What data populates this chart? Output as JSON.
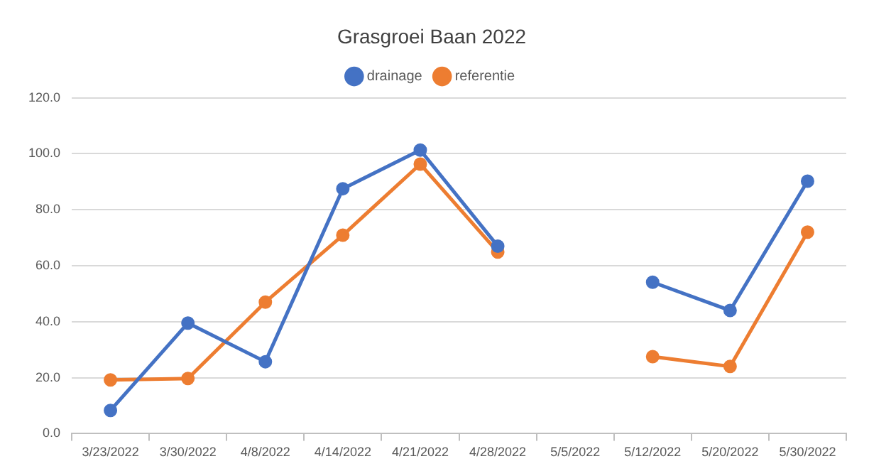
{
  "chart_data": {
    "type": "line",
    "title": "Grasgroei Baan 2022",
    "categories": [
      "3/23/2022",
      "3/30/2022",
      "4/8/2022",
      "4/14/2022",
      "4/21/2022",
      "4/28/2022",
      "5/5/2022",
      "5/12/2022",
      "5/20/2022",
      "5/30/2022"
    ],
    "series": [
      {
        "name": "drainage",
        "color": "#4472c4",
        "values": [
          8.3,
          39.5,
          25.7,
          87.5,
          101.3,
          67,
          null,
          54.1,
          44,
          90.2
        ]
      },
      {
        "name": "referentie",
        "color": "#ed7d31",
        "values": [
          19.2,
          19.7,
          47,
          70.9,
          96.3,
          64.9,
          null,
          27.5,
          24,
          72
        ]
      }
    ],
    "ylim": [
      0,
      120
    ],
    "yticks": [
      {
        "value": 0,
        "label": "0.0"
      },
      {
        "value": 20,
        "label": "20.0"
      },
      {
        "value": 40,
        "label": "40.0"
      },
      {
        "value": 60,
        "label": "60.0"
      },
      {
        "value": 80,
        "label": "80.0"
      },
      {
        "value": 100,
        "label": "100.0"
      },
      {
        "value": 120,
        "label": "120.0"
      }
    ],
    "grid": "y",
    "legend": "top",
    "marker": "circle",
    "line_style": "solid"
  }
}
